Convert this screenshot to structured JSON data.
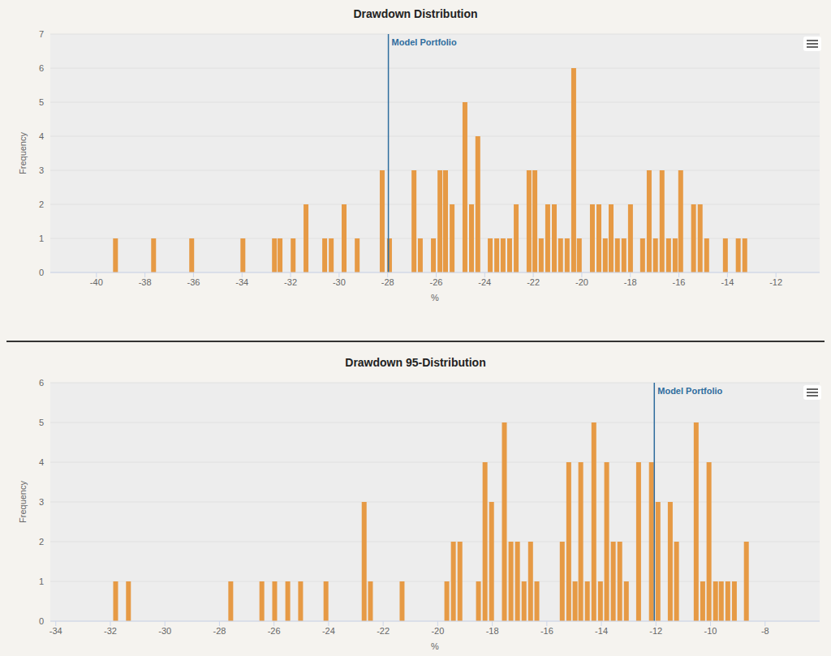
{
  "chart_data": [
    {
      "type": "bar",
      "title": "Drawdown Distribution",
      "x_label": "%",
      "y_label": "Frequency",
      "x": [
        -39.2,
        -37.63,
        -36.06,
        -33.95,
        -32.65,
        -32.42,
        -31.88,
        -31.35,
        -30.58,
        -30.31,
        -29.78,
        -29.24,
        -28.21,
        -27.91,
        -26.9,
        -26.64,
        -26.1,
        -25.83,
        -25.6,
        -25.33,
        -24.8,
        -24.53,
        -24.27,
        -23.76,
        -23.49,
        -23.23,
        -22.96,
        -22.69,
        -22.16,
        -21.92,
        -21.66,
        -21.39,
        -21.12,
        -20.86,
        -20.59,
        -20.32,
        -20.09,
        -19.55,
        -19.28,
        -19.02,
        -18.78,
        -18.52,
        -18.25,
        -17.98,
        -17.48,
        -17.21,
        -16.95,
        -16.68,
        -16.41,
        -16.14,
        -15.91,
        -15.38,
        -15.11,
        -14.84,
        -14.07,
        -13.54,
        -13.27
      ],
      "values": [
        1,
        1,
        1,
        1,
        1,
        1,
        1,
        2,
        1,
        1,
        2,
        1,
        3,
        1,
        3,
        1,
        1,
        3,
        3,
        2,
        5,
        2,
        4,
        1,
        1,
        1,
        1,
        2,
        3,
        3,
        1,
        2,
        2,
        1,
        1,
        6,
        1,
        2,
        2,
        1,
        2,
        1,
        1,
        2,
        1,
        3,
        1,
        3,
        1,
        1,
        3,
        2,
        2,
        1,
        1,
        1,
        1
      ],
      "color": "#e69a45",
      "xlim": [
        -41.9,
        -10.2
      ],
      "xticks": [
        -40,
        -38,
        -36,
        -34,
        -32,
        -30,
        -28,
        -26,
        -24,
        -22,
        -20,
        -18,
        -16,
        -14,
        -12
      ],
      "ylim": [
        0,
        7
      ],
      "yticks": [
        0,
        1,
        2,
        3,
        4,
        5,
        6,
        7
      ],
      "grid": true,
      "annotations": [
        {
          "x": -27.97,
          "text": "Model Portfolio"
        }
      ]
    },
    {
      "type": "bar",
      "title": "Drawdown 95-Distribution",
      "x_label": "%",
      "y_label": "Frequency",
      "x": [
        -31.82,
        -31.35,
        -27.6,
        -26.46,
        -25.99,
        -25.51,
        -25.04,
        -24.11,
        -22.71,
        -22.48,
        -21.32,
        -19.68,
        -19.44,
        -19.2,
        -18.52,
        -18.28,
        -18.04,
        -17.57,
        -17.33,
        -17.09,
        -16.85,
        -16.61,
        -16.38,
        -15.45,
        -15.21,
        -14.98,
        -14.77,
        -14.53,
        -14.29,
        -14.05,
        -13.82,
        -13.58,
        -13.34,
        -13.1,
        -12.65,
        -12.18,
        -11.94,
        -11.49,
        -11.26,
        -10.54,
        -10.3,
        -10.07,
        -9.83,
        -9.62,
        -9.38,
        -9.14,
        -8.7
      ],
      "values": [
        1,
        1,
        1,
        1,
        1,
        1,
        1,
        1,
        3,
        1,
        1,
        1,
        2,
        2,
        1,
        4,
        3,
        5,
        2,
        2,
        1,
        2,
        1,
        2,
        4,
        1,
        4,
        1,
        5,
        1,
        4,
        2,
        2,
        1,
        4,
        4,
        3,
        3,
        2,
        5,
        1,
        4,
        1,
        1,
        1,
        1,
        2
      ],
      "color": "#e69a45",
      "xlim": [
        -34.2,
        -6.0
      ],
      "xticks": [
        -34,
        -32,
        -30,
        -28,
        -26,
        -24,
        -22,
        -20,
        -18,
        -16,
        -14,
        -12,
        -10,
        -8
      ],
      "ylim": [
        0,
        6
      ],
      "yticks": [
        0,
        1,
        2,
        3,
        4,
        5,
        6
      ],
      "grid": true,
      "annotations": [
        {
          "x": -12.06,
          "text": "Model Portfolio"
        }
      ]
    }
  ]
}
